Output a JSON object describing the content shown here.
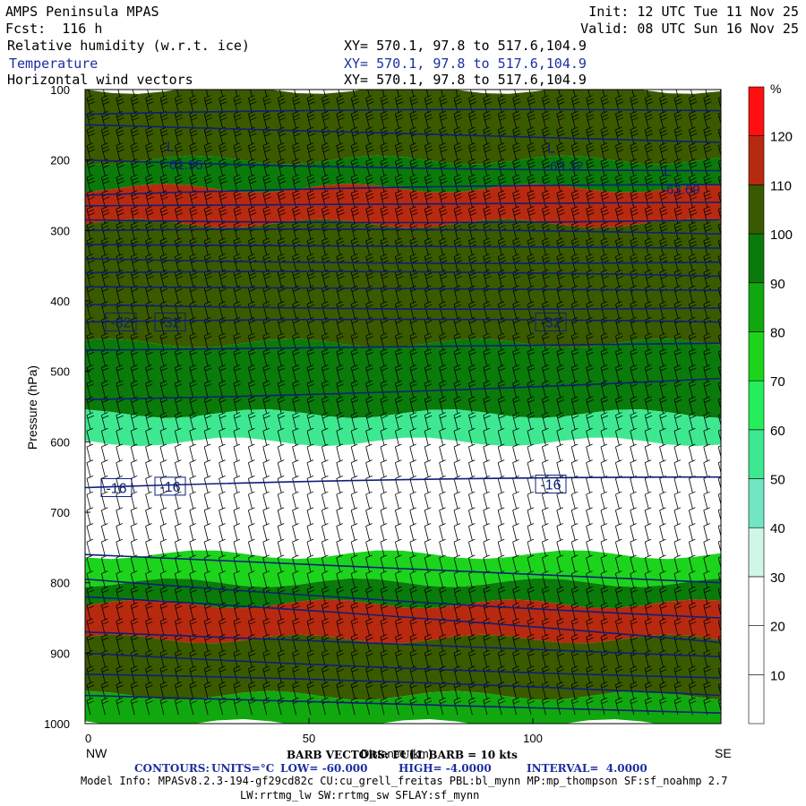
{
  "header": {
    "title": "AMPS Peninsula MPAS",
    "forecast": "Fcst:  116 h",
    "init": "Init: 12 UTC Tue 11 Nov 25",
    "valid": "Valid: 08 UTC Sun 16 Nov 25",
    "field1": "Relative humidity (w.r.t. ice)",
    "field2": "Temperature",
    "field3": "Horizontal wind vectors",
    "xy1": "XY= 570.1, 97.8 to 517.6,104.9",
    "xy2": "XY= 570.1, 97.8 to 517.6,104.9",
    "xy3": "XY= 570.1, 97.8 to 517.6,104.9"
  },
  "chart_data": {
    "type": "heatmap",
    "title": "Relative humidity (w.r.t. ice)",
    "ylabel": "Pressure (hPa)",
    "xlabel": "Distance (km)",
    "x_ticks": [
      0,
      50,
      100
    ],
    "x_tick_labels": [
      "0",
      "50",
      "100"
    ],
    "xlim": [
      0,
      142
    ],
    "y_ticks": [
      100,
      200,
      300,
      400,
      500,
      600,
      700,
      800,
      900,
      1000
    ],
    "y_tick_labels": [
      "100",
      "200",
      "300",
      "400",
      "500",
      "600",
      "700",
      "800",
      "900",
      "1000"
    ],
    "ylim": [
      1000,
      100
    ],
    "left_end_label": "NW",
    "right_end_label": "SE",
    "colorbar": {
      "unit": "%",
      "levels": [
        10,
        20,
        30,
        40,
        50,
        60,
        70,
        80,
        90,
        100,
        110,
        120
      ],
      "labels": [
        "10",
        "20",
        "30",
        "40",
        "50",
        "60",
        "70",
        "80",
        "90",
        "100",
        "110",
        "120"
      ],
      "colors": [
        "#ffffff",
        "#ffffff",
        "#ffffff",
        "#cff6e6",
        "#72e6c2",
        "#3ee890",
        "#26ee5a",
        "#1cd41c",
        "#11a80f",
        "#0a7a0a",
        "#3a5a00",
        "#b82a10",
        "#ff1010"
      ]
    },
    "rh_layers": [
      {
        "p_top": 100,
        "p_bot": 200,
        "rh": 100
      },
      {
        "p_top": 200,
        "p_bot": 240,
        "rh": 95
      },
      {
        "p_top": 240,
        "p_bot": 290,
        "rh": 115
      },
      {
        "p_top": 290,
        "p_bot": 460,
        "rh": 105
      },
      {
        "p_top": 460,
        "p_bot": 560,
        "rh": 95
      },
      {
        "p_top": 560,
        "p_bot": 600,
        "rh": 55
      },
      {
        "p_top": 600,
        "p_bot": 760,
        "rh": 15
      },
      {
        "p_top": 760,
        "p_bot": 800,
        "rh": 75
      },
      {
        "p_top": 800,
        "p_bot": 830,
        "rh": 95
      },
      {
        "p_top": 830,
        "p_bot": 880,
        "rh": 115
      },
      {
        "p_top": 880,
        "p_bot": 960,
        "rh": 105
      },
      {
        "p_top": 960,
        "p_bot": 1000,
        "rh": 80
      }
    ],
    "temperature_contours": {
      "interval": 4,
      "labeled": [
        {
          "value": "-32",
          "positions": [
            [
              8,
              430
            ],
            [
              19,
              430
            ],
            [
              104,
              430
            ]
          ]
        },
        {
          "value": "-16",
          "positions": [
            [
              7,
              665
            ],
            [
              19,
              663
            ],
            [
              104,
              660
            ]
          ]
        }
      ],
      "minima": [
        {
          "marker": "L",
          "value": "-61.95",
          "x": 19,
          "p": 190
        },
        {
          "marker": "L",
          "value": "-63.32",
          "x": 104,
          "p": 192
        },
        {
          "marker": "L",
          "value": "-63.69",
          "x": 130,
          "p": 225
        }
      ],
      "levels_p_left": [
        135,
        150,
        200,
        250,
        265,
        285,
        300,
        320,
        340,
        360,
        380,
        405,
        430,
        470,
        540,
        665,
        760,
        795,
        820,
        870,
        900,
        930,
        960
      ],
      "levels_p_right": [
        130,
        175,
        215,
        235,
        260,
        285,
        305,
        325,
        345,
        365,
        385,
        410,
        430,
        460,
        510,
        650,
        800,
        850,
        885,
        905,
        935,
        960,
        985
      ]
    },
    "barb_legend": "BARB VECTORS: FULL BARB = 10 kts"
  },
  "footer": {
    "barb": "BARB VECTORS: FULL BARB = 10 kts",
    "contours_label": "CONTOURS:",
    "units": "UNITS=°C",
    "low": "LOW= -60.000",
    "high": "HIGH= -4.0000",
    "interval": "INTERVAL=  4.0000",
    "model_info": "Model Info: MPASv8.2.3-194-gf29cd82c CU:cu_grell_freitas PBL:bl_mynn MP:mp_thompson SF:sf_noahmp 2.7",
    "model_info2": "LW:rrtmg_lw SW:rrtmg_sw SFLAY:sf_mynn"
  }
}
